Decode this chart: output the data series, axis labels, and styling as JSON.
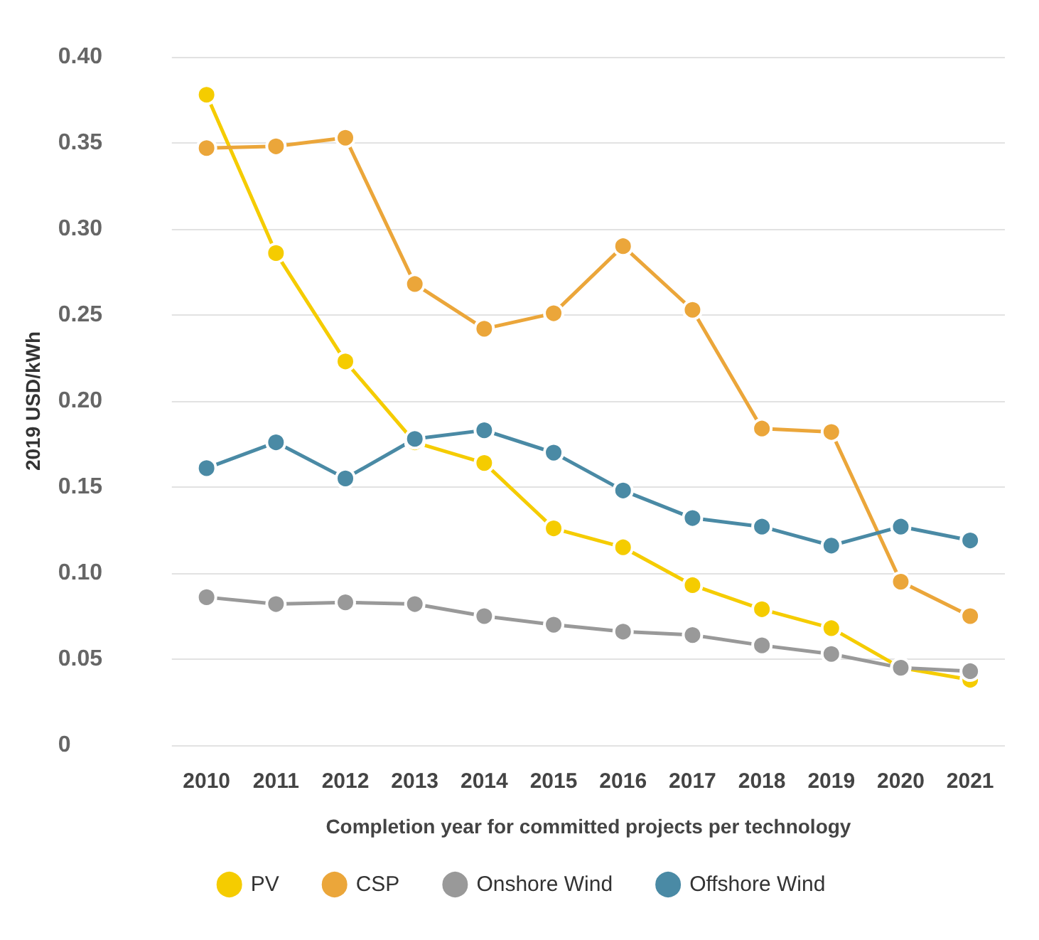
{
  "chart_data": {
    "type": "line",
    "xlabel": "Completion year for committed projects per technology",
    "ylabel": "2019 USD/kWh",
    "categories": [
      "2010",
      "2011",
      "2012",
      "2013",
      "2014",
      "2015",
      "2016",
      "2017",
      "2018",
      "2019",
      "2020",
      "2021"
    ],
    "series": [
      {
        "name": "PV",
        "color": "#f5cc00",
        "values": [
          0.378,
          0.286,
          0.223,
          0.176,
          0.164,
          0.126,
          0.115,
          0.093,
          0.079,
          0.068,
          0.045,
          0.038
        ]
      },
      {
        "name": "CSP",
        "color": "#eba63a",
        "values": [
          0.347,
          0.348,
          0.353,
          0.268,
          0.242,
          0.251,
          0.29,
          0.253,
          0.184,
          0.182,
          0.095,
          0.075
        ]
      },
      {
        "name": "Onshore Wind",
        "color": "#999999",
        "values": [
          0.086,
          0.082,
          0.083,
          0.082,
          0.075,
          0.07,
          0.066,
          0.064,
          0.058,
          0.053,
          0.045,
          0.043
        ]
      },
      {
        "name": "Offshore Wind",
        "color": "#4a8aa5",
        "values": [
          0.161,
          0.176,
          0.155,
          0.178,
          0.183,
          0.17,
          0.148,
          0.132,
          0.127,
          0.116,
          0.127,
          0.119
        ]
      }
    ],
    "ylim": [
      0,
      0.4
    ],
    "yticks": [
      0,
      {
        "value": 0.05,
        "label": "0.05"
      },
      {
        "value": 0.1,
        "label": "0.10"
      },
      {
        "value": 0.15,
        "label": "0.15"
      },
      {
        "value": 0.2,
        "label": "0.20"
      },
      {
        "value": 0.25,
        "label": "0.25"
      },
      {
        "value": 0.3,
        "label": "0.30"
      },
      {
        "value": 0.35,
        "label": "0.35"
      },
      {
        "value": 0.4,
        "label": "0.40"
      }
    ],
    "grid": "y",
    "legend": "bottom",
    "marker": "circle",
    "line_style": "solid"
  }
}
